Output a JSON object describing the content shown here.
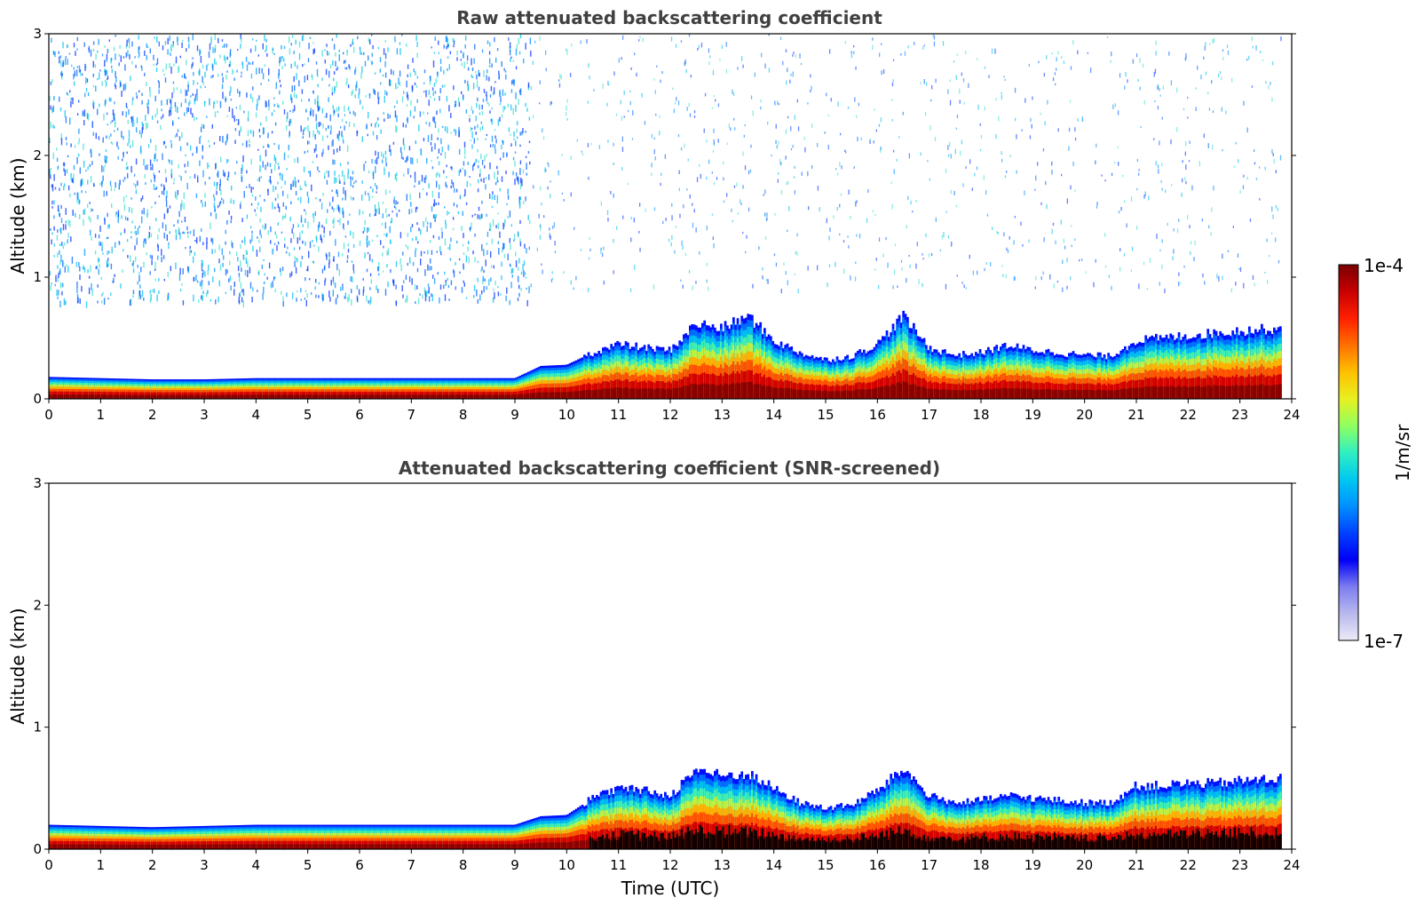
{
  "chart_data": [
    {
      "type": "heatmap",
      "title": "Raw attenuated backscattering coefficient",
      "xlabel": "",
      "ylabel": "Altitude (km)",
      "xlim": [
        0,
        24
      ],
      "ylim": [
        0,
        3
      ],
      "x_ticks": [
        0,
        1,
        2,
        3,
        4,
        5,
        6,
        7,
        8,
        9,
        10,
        11,
        12,
        13,
        14,
        15,
        16,
        17,
        18,
        19,
        20,
        21,
        22,
        23,
        24
      ],
      "y_ticks": [
        0,
        1,
        2,
        3
      ],
      "layer_top_km": [
        [
          0,
          0.18
        ],
        [
          1,
          0.17
        ],
        [
          2,
          0.16
        ],
        [
          3,
          0.16
        ],
        [
          4,
          0.17
        ],
        [
          5,
          0.17
        ],
        [
          6,
          0.17
        ],
        [
          7,
          0.17
        ],
        [
          8,
          0.17
        ],
        [
          9,
          0.17
        ],
        [
          9.5,
          0.27
        ],
        [
          10,
          0.28
        ],
        [
          10.5,
          0.38
        ],
        [
          11,
          0.45
        ],
        [
          11.5,
          0.42
        ],
        [
          12,
          0.4
        ],
        [
          12.5,
          0.62
        ],
        [
          13,
          0.58
        ],
        [
          13.5,
          0.68
        ],
        [
          14,
          0.48
        ],
        [
          14.5,
          0.38
        ],
        [
          15,
          0.32
        ],
        [
          15.5,
          0.35
        ],
        [
          16,
          0.45
        ],
        [
          16.5,
          0.68
        ],
        [
          17,
          0.42
        ],
        [
          17.5,
          0.36
        ],
        [
          18,
          0.38
        ],
        [
          18.5,
          0.44
        ],
        [
          19,
          0.4
        ],
        [
          19.5,
          0.38
        ],
        [
          20,
          0.36
        ],
        [
          20.5,
          0.35
        ],
        [
          21,
          0.48
        ],
        [
          21.5,
          0.5
        ],
        [
          22,
          0.52
        ],
        [
          22.5,
          0.54
        ],
        [
          23,
          0.56
        ],
        [
          23.8,
          0.58
        ]
      ],
      "noise_region": {
        "x_range": [
          0,
          9.3
        ],
        "altitude_km": [
          0.8,
          3
        ],
        "description_level": "sparse blue speckle"
      }
    },
    {
      "type": "heatmap",
      "title": "Attenuated backscattering coefficient (SNR-screened)",
      "xlabel": "Time (UTC)",
      "ylabel": "Altitude (km)",
      "xlim": [
        0,
        24
      ],
      "ylim": [
        0,
        3
      ],
      "x_ticks": [
        0,
        1,
        2,
        3,
        4,
        5,
        6,
        7,
        8,
        9,
        10,
        11,
        12,
        13,
        14,
        15,
        16,
        17,
        18,
        19,
        20,
        21,
        22,
        23,
        24
      ],
      "y_ticks": [
        0,
        1,
        2,
        3
      ],
      "layer_top_km": [
        [
          0,
          0.2
        ],
        [
          1,
          0.19
        ],
        [
          2,
          0.18
        ],
        [
          3,
          0.19
        ],
        [
          4,
          0.2
        ],
        [
          5,
          0.2
        ],
        [
          6,
          0.2
        ],
        [
          7,
          0.2
        ],
        [
          8,
          0.2
        ],
        [
          9,
          0.2
        ],
        [
          9.5,
          0.27
        ],
        [
          10,
          0.28
        ],
        [
          10.5,
          0.42
        ],
        [
          11,
          0.5
        ],
        [
          11.5,
          0.48
        ],
        [
          12,
          0.44
        ],
        [
          12.5,
          0.66
        ],
        [
          13,
          0.6
        ],
        [
          13.5,
          0.62
        ],
        [
          14,
          0.5
        ],
        [
          14.5,
          0.38
        ],
        [
          15,
          0.34
        ],
        [
          15.5,
          0.36
        ],
        [
          16,
          0.48
        ],
        [
          16.5,
          0.66
        ],
        [
          17,
          0.44
        ],
        [
          17.5,
          0.38
        ],
        [
          18,
          0.4
        ],
        [
          18.5,
          0.44
        ],
        [
          19,
          0.42
        ],
        [
          19.5,
          0.4
        ],
        [
          20,
          0.38
        ],
        [
          20.5,
          0.38
        ],
        [
          21,
          0.52
        ],
        [
          21.5,
          0.52
        ],
        [
          22,
          0.54
        ],
        [
          22.5,
          0.54
        ],
        [
          23,
          0.56
        ],
        [
          23.8,
          0.58
        ]
      ]
    }
  ],
  "colorbar": {
    "min_label": "1e-7",
    "max_label": "1e-4",
    "unit_label": "1/m/sr",
    "stops": [
      "#ebebf7",
      "#b8b8ee",
      "#7c7cf0",
      "#0000f5",
      "#0040ff",
      "#0090ff",
      "#00c8f0",
      "#30f0c0",
      "#90ff60",
      "#e8f020",
      "#ffc000",
      "#ff7000",
      "#ff2000",
      "#c80000",
      "#7a0000"
    ]
  }
}
